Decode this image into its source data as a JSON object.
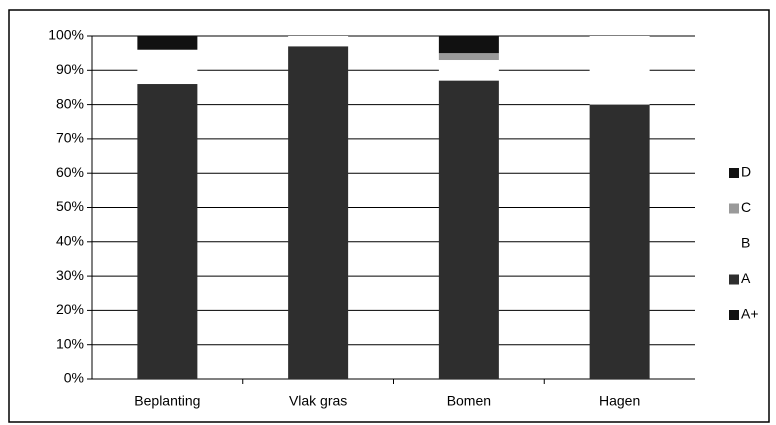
{
  "chart_data": {
    "type": "stacked_bar",
    "categories": [
      "Beplanting",
      "Vlak gras",
      "Bomen",
      "Hagen"
    ],
    "series": [
      {
        "name": "A+",
        "color": "#111111",
        "values": [
          0,
          0,
          0,
          0
        ]
      },
      {
        "name": "A",
        "color": "#2e2e2e",
        "values": [
          86,
          97,
          87,
          80
        ]
      },
      {
        "name": "B",
        "color": "#ffffff",
        "values": [
          10,
          3,
          6,
          20
        ]
      },
      {
        "name": "C",
        "color": "#9a9a9a",
        "values": [
          0,
          0,
          2,
          0
        ]
      },
      {
        "name": "D",
        "color": "#111111",
        "values": [
          4,
          0,
          5,
          0
        ]
      }
    ],
    "ylim": [
      0,
      100
    ],
    "yticks": [
      {
        "value": 0,
        "label": "0%"
      },
      {
        "value": 10,
        "label": "10%"
      },
      {
        "value": 20,
        "label": "20%"
      },
      {
        "value": 30,
        "label": "30%"
      },
      {
        "value": 40,
        "label": "40%"
      },
      {
        "value": 50,
        "label": "50%"
      },
      {
        "value": 60,
        "label": "60%"
      },
      {
        "value": 70,
        "label": "70%"
      },
      {
        "value": 80,
        "label": "80%"
      },
      {
        "value": 90,
        "label": "90%"
      },
      {
        "value": 100,
        "label": "100%"
      }
    ],
    "grid": true,
    "legend": "right"
  }
}
